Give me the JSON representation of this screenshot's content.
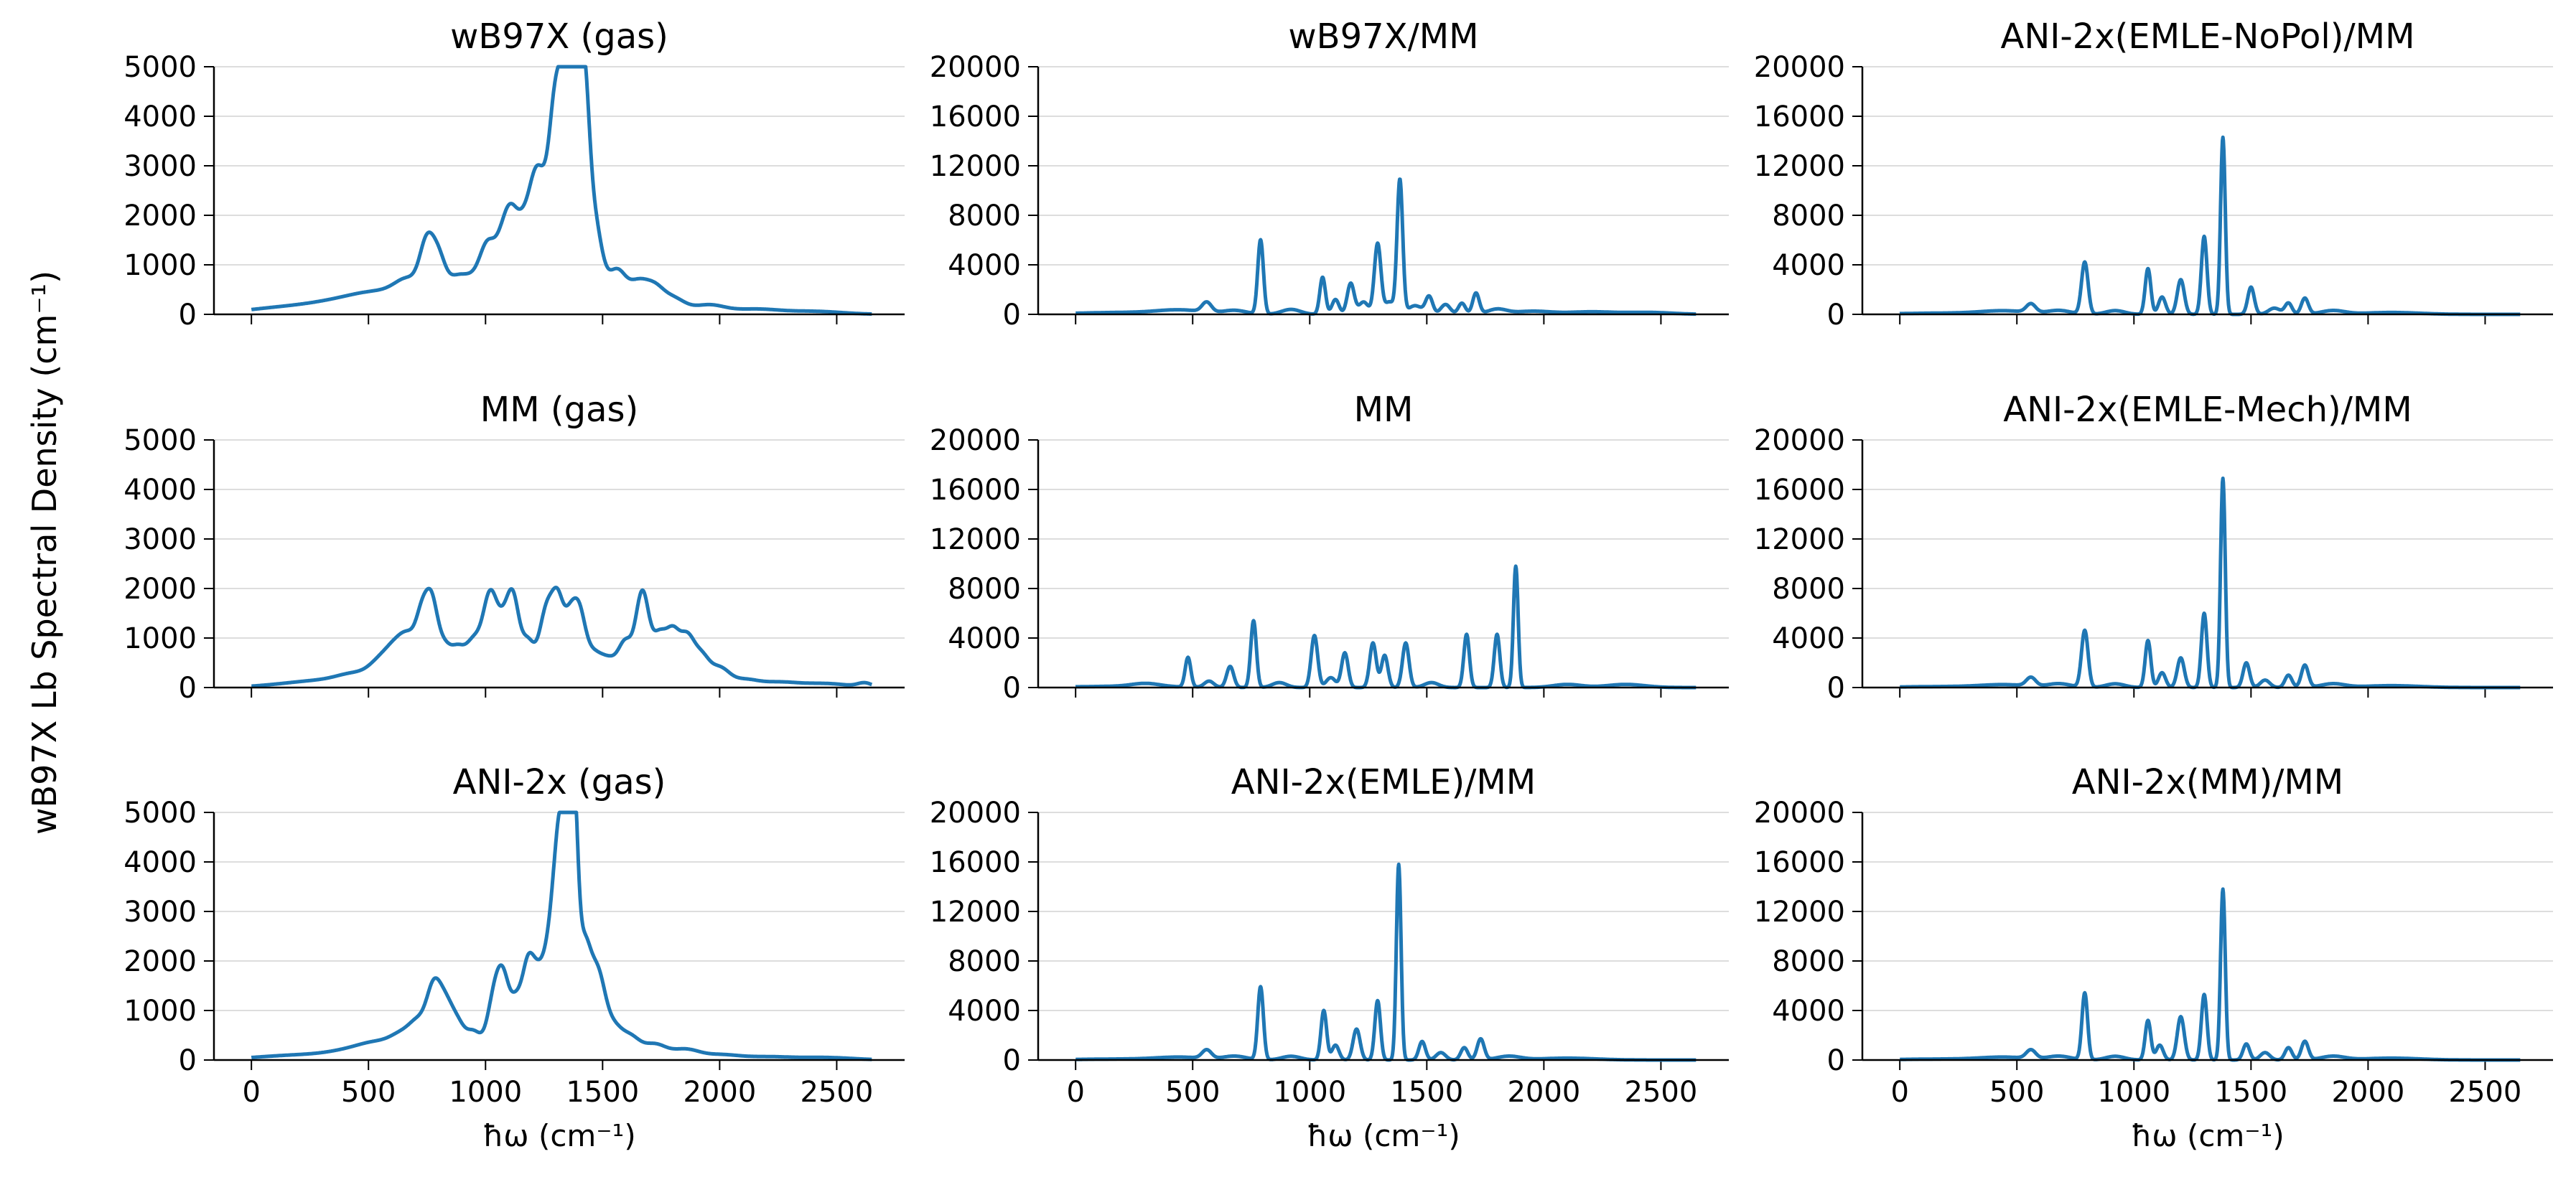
{
  "figure": {
    "ylabel": "wB97X Lb Spectral Density (cm⁻¹)",
    "xlabel": "ħω (cm⁻¹)",
    "line_color": "#1f77b4",
    "grid_color": "#dddddd"
  },
  "chart_data": [
    {
      "type": "line",
      "title": "wB97X (gas)",
      "xlim": [
        0,
        2650
      ],
      "ylim": [
        0,
        5000
      ],
      "xticks": [
        0,
        500,
        1000,
        1500,
        2000,
        2500
      ],
      "yticks": [
        0,
        1000,
        2000,
        3000,
        4000,
        5000
      ],
      "grid": "y",
      "peaks": [
        [
          80,
          60,
          150
        ],
        [
          250,
          90,
          200
        ],
        [
          420,
          200,
          150
        ],
        [
          580,
          300,
          120
        ],
        [
          680,
          450,
          60
        ],
        [
          750,
          1050,
          30
        ],
        [
          800,
          850,
          30
        ],
        [
          870,
          600,
          40
        ],
        [
          940,
          560,
          40
        ],
        [
          1010,
          1250,
          35
        ],
        [
          1070,
          950,
          30
        ],
        [
          1110,
          1500,
          30
        ],
        [
          1160,
          1250,
          30
        ],
        [
          1210,
          1450,
          30
        ],
        [
          1260,
          2150,
          45
        ],
        [
          1300,
          2500,
          25
        ],
        [
          1340,
          2650,
          25
        ],
        [
          1375,
          3600,
          28
        ],
        [
          1420,
          3350,
          22
        ],
        [
          1460,
          1900,
          35
        ],
        [
          1560,
          850,
          40
        ],
        [
          1650,
          550,
          40
        ],
        [
          1720,
          450,
          40
        ],
        [
          1800,
          300,
          50
        ],
        [
          1950,
          180,
          70
        ],
        [
          2150,
          100,
          100
        ],
        [
          2400,
          60,
          120
        ]
      ]
    },
    {
      "type": "line",
      "title": "wB97X/MM",
      "xlim": [
        0,
        2650
      ],
      "ylim": [
        0,
        20000
      ],
      "xticks": [
        0,
        500,
        1000,
        1500,
        2000,
        2500
      ],
      "yticks": [
        0,
        4000,
        8000,
        12000,
        16000,
        20000
      ],
      "grid": "y",
      "peaks": [
        [
          200,
          150,
          200
        ],
        [
          450,
          300,
          100
        ],
        [
          560,
          800,
          20
        ],
        [
          680,
          300,
          50
        ],
        [
          790,
          6000,
          12
        ],
        [
          920,
          400,
          40
        ],
        [
          1055,
          3000,
          12
        ],
        [
          1110,
          1200,
          15
        ],
        [
          1175,
          2500,
          15
        ],
        [
          1230,
          1000,
          20
        ],
        [
          1290,
          5700,
          14
        ],
        [
          1340,
          1000,
          20
        ],
        [
          1385,
          10800,
          12
        ],
        [
          1450,
          700,
          30
        ],
        [
          1510,
          1400,
          15
        ],
        [
          1580,
          800,
          20
        ],
        [
          1650,
          900,
          15
        ],
        [
          1710,
          1700,
          14
        ],
        [
          1800,
          400,
          40
        ],
        [
          1950,
          250,
          80
        ],
        [
          2200,
          200,
          100
        ],
        [
          2450,
          150,
          100
        ]
      ]
    },
    {
      "type": "line",
      "title": "ANI-2x(EMLE-NoPol)/MM",
      "xlim": [
        0,
        2650
      ],
      "ylim": [
        0,
        20000
      ],
      "xticks": [
        0,
        500,
        1000,
        1500,
        2000,
        2500
      ],
      "yticks": [
        0,
        4000,
        8000,
        12000,
        16000,
        20000
      ],
      "grid": "y",
      "peaks": [
        [
          200,
          100,
          200
        ],
        [
          450,
          250,
          100
        ],
        [
          560,
          700,
          20
        ],
        [
          680,
          300,
          50
        ],
        [
          790,
          4200,
          14
        ],
        [
          920,
          300,
          40
        ],
        [
          1060,
          3700,
          12
        ],
        [
          1120,
          1400,
          15
        ],
        [
          1200,
          2800,
          15
        ],
        [
          1300,
          6300,
          12
        ],
        [
          1380,
          14300,
          10
        ],
        [
          1500,
          2200,
          14
        ],
        [
          1600,
          500,
          25
        ],
        [
          1660,
          900,
          15
        ],
        [
          1730,
          1300,
          15
        ],
        [
          1850,
          300,
          50
        ],
        [
          2100,
          150,
          120
        ]
      ]
    },
    {
      "type": "line",
      "title": "MM (gas)",
      "xlim": [
        0,
        2650
      ],
      "ylim": [
        0,
        5000
      ],
      "xticks": [
        0,
        500,
        1000,
        1500,
        2000,
        2500
      ],
      "yticks": [
        0,
        1000,
        2000,
        3000,
        4000,
        5000
      ],
      "grid": "y",
      "peaks": [
        [
          150,
          60,
          120
        ],
        [
          300,
          100,
          100
        ],
        [
          450,
          250,
          80
        ],
        [
          560,
          450,
          50
        ],
        [
          620,
          500,
          40
        ],
        [
          680,
          850,
          40
        ],
        [
          730,
          1000,
          25
        ],
        [
          770,
          1400,
          25
        ],
        [
          820,
          750,
          30
        ],
        [
          880,
          650,
          30
        ],
        [
          950,
          900,
          35
        ],
        [
          1020,
          1700,
          30
        ],
        [
          1080,
          1100,
          30
        ],
        [
          1120,
          1350,
          25
        ],
        [
          1180,
          900,
          30
        ],
        [
          1260,
          1500,
          30
        ],
        [
          1310,
          1450,
          25
        ],
        [
          1360,
          1150,
          25
        ],
        [
          1400,
          1100,
          25
        ],
        [
          1450,
          650,
          40
        ],
        [
          1530,
          500,
          40
        ],
        [
          1600,
          800,
          30
        ],
        [
          1670,
          1850,
          28
        ],
        [
          1740,
          950,
          30
        ],
        [
          1800,
          1000,
          30
        ],
        [
          1860,
          850,
          30
        ],
        [
          1920,
          600,
          35
        ],
        [
          2000,
          350,
          40
        ],
        [
          2100,
          150,
          60
        ],
        [
          2250,
          100,
          80
        ],
        [
          2450,
          80,
          100
        ],
        [
          2620,
          80,
          30
        ]
      ]
    },
    {
      "type": "line",
      "title": "MM",
      "xlim": [
        0,
        2650
      ],
      "ylim": [
        0,
        20000
      ],
      "xticks": [
        0,
        500,
        1000,
        1500,
        2000,
        2500
      ],
      "yticks": [
        0,
        4000,
        8000,
        12000,
        16000,
        20000
      ],
      "grid": "y",
      "peaks": [
        [
          200,
          100,
          200
        ],
        [
          300,
          250,
          60
        ],
        [
          480,
          2400,
          12
        ],
        [
          570,
          500,
          20
        ],
        [
          660,
          1700,
          15
        ],
        [
          760,
          5400,
          12
        ],
        [
          870,
          400,
          30
        ],
        [
          1020,
          4200,
          14
        ],
        [
          1090,
          800,
          20
        ],
        [
          1150,
          2800,
          14
        ],
        [
          1270,
          3600,
          14
        ],
        [
          1320,
          2600,
          14
        ],
        [
          1410,
          3600,
          14
        ],
        [
          1520,
          400,
          30
        ],
        [
          1670,
          4300,
          12
        ],
        [
          1800,
          4300,
          12
        ],
        [
          1880,
          9800,
          10
        ],
        [
          2100,
          250,
          60
        ],
        [
          2350,
          250,
          80
        ]
      ]
    },
    {
      "type": "line",
      "title": "ANI-2x(EMLE-Mech)/MM",
      "xlim": [
        0,
        2650
      ],
      "ylim": [
        0,
        20000
      ],
      "xticks": [
        0,
        500,
        1000,
        1500,
        2000,
        2500
      ],
      "yticks": [
        0,
        4000,
        8000,
        12000,
        16000,
        20000
      ],
      "grid": "y",
      "peaks": [
        [
          200,
          80,
          200
        ],
        [
          450,
          200,
          100
        ],
        [
          560,
          700,
          20
        ],
        [
          680,
          300,
          50
        ],
        [
          790,
          4600,
          14
        ],
        [
          920,
          300,
          40
        ],
        [
          1060,
          3800,
          12
        ],
        [
          1120,
          1200,
          15
        ],
        [
          1200,
          2400,
          15
        ],
        [
          1300,
          6000,
          12
        ],
        [
          1380,
          16900,
          10
        ],
        [
          1480,
          2000,
          14
        ],
        [
          1560,
          600,
          20
        ],
        [
          1660,
          1000,
          15
        ],
        [
          1730,
          1800,
          15
        ],
        [
          1850,
          300,
          50
        ],
        [
          2100,
          150,
          120
        ]
      ]
    },
    {
      "type": "line",
      "title": "ANI-2x (gas)",
      "xlim": [
        0,
        2650
      ],
      "ylim": [
        0,
        5000
      ],
      "xticks": [
        0,
        500,
        1000,
        1500,
        2000,
        2500
      ],
      "yticks": [
        0,
        1000,
        2000,
        3000,
        4000,
        5000
      ],
      "grid": "y",
      "peaks": [
        [
          100,
          50,
          150
        ],
        [
          300,
          80,
          150
        ],
        [
          450,
          150,
          100
        ],
        [
          560,
          250,
          80
        ],
        [
          650,
          350,
          50
        ],
        [
          720,
          600,
          40
        ],
        [
          780,
          1200,
          30
        ],
        [
          830,
          900,
          30
        ],
        [
          880,
          600,
          30
        ],
        [
          950,
          550,
          35
        ],
        [
          1040,
          1300,
          30
        ],
        [
          1080,
          1150,
          25
        ],
        [
          1130,
          1000,
          25
        ],
        [
          1180,
          1650,
          25
        ],
        [
          1220,
          1100,
          25
        ],
        [
          1270,
          1900,
          30
        ],
        [
          1310,
          2200,
          25
        ],
        [
          1340,
          3300,
          28
        ],
        [
          1375,
          3900,
          18
        ],
        [
          1420,
          2200,
          30
        ],
        [
          1480,
          1400,
          30
        ],
        [
          1540,
          650,
          40
        ],
        [
          1620,
          400,
          40
        ],
        [
          1720,
          300,
          50
        ],
        [
          1850,
          200,
          60
        ],
        [
          2000,
          100,
          80
        ],
        [
          2200,
          60,
          100
        ],
        [
          2450,
          50,
          120
        ]
      ]
    },
    {
      "type": "line",
      "title": "ANI-2x(EMLE)/MM",
      "xlim": [
        0,
        2650
      ],
      "ylim": [
        0,
        20000
      ],
      "xticks": [
        0,
        500,
        1000,
        1500,
        2000,
        2500
      ],
      "yticks": [
        0,
        4000,
        8000,
        12000,
        16000,
        20000
      ],
      "grid": "y",
      "peaks": [
        [
          200,
          80,
          200
        ],
        [
          450,
          200,
          100
        ],
        [
          560,
          700,
          20
        ],
        [
          680,
          300,
          50
        ],
        [
          790,
          5900,
          12
        ],
        [
          920,
          300,
          40
        ],
        [
          1060,
          4000,
          12
        ],
        [
          1110,
          1200,
          15
        ],
        [
          1200,
          2500,
          15
        ],
        [
          1290,
          4800,
          12
        ],
        [
          1380,
          15800,
          10
        ],
        [
          1480,
          1500,
          14
        ],
        [
          1560,
          600,
          20
        ],
        [
          1660,
          1000,
          15
        ],
        [
          1730,
          1700,
          15
        ],
        [
          1850,
          300,
          50
        ],
        [
          2100,
          150,
          120
        ]
      ]
    },
    {
      "type": "line",
      "title": "ANI-2x(MM)/MM",
      "xlim": [
        0,
        2650
      ],
      "ylim": [
        0,
        20000
      ],
      "xticks": [
        0,
        500,
        1000,
        1500,
        2000,
        2500
      ],
      "yticks": [
        0,
        4000,
        8000,
        12000,
        16000,
        20000
      ],
      "grid": "y",
      "peaks": [
        [
          200,
          80,
          200
        ],
        [
          450,
          200,
          100
        ],
        [
          560,
          700,
          20
        ],
        [
          680,
          300,
          50
        ],
        [
          790,
          5400,
          12
        ],
        [
          920,
          300,
          40
        ],
        [
          1060,
          3200,
          12
        ],
        [
          1110,
          1200,
          15
        ],
        [
          1200,
          3500,
          15
        ],
        [
          1300,
          5300,
          12
        ],
        [
          1380,
          13800,
          10
        ],
        [
          1480,
          1300,
          14
        ],
        [
          1560,
          600,
          20
        ],
        [
          1660,
          1000,
          15
        ],
        [
          1730,
          1500,
          15
        ],
        [
          1850,
          300,
          50
        ],
        [
          2100,
          150,
          120
        ]
      ]
    }
  ]
}
